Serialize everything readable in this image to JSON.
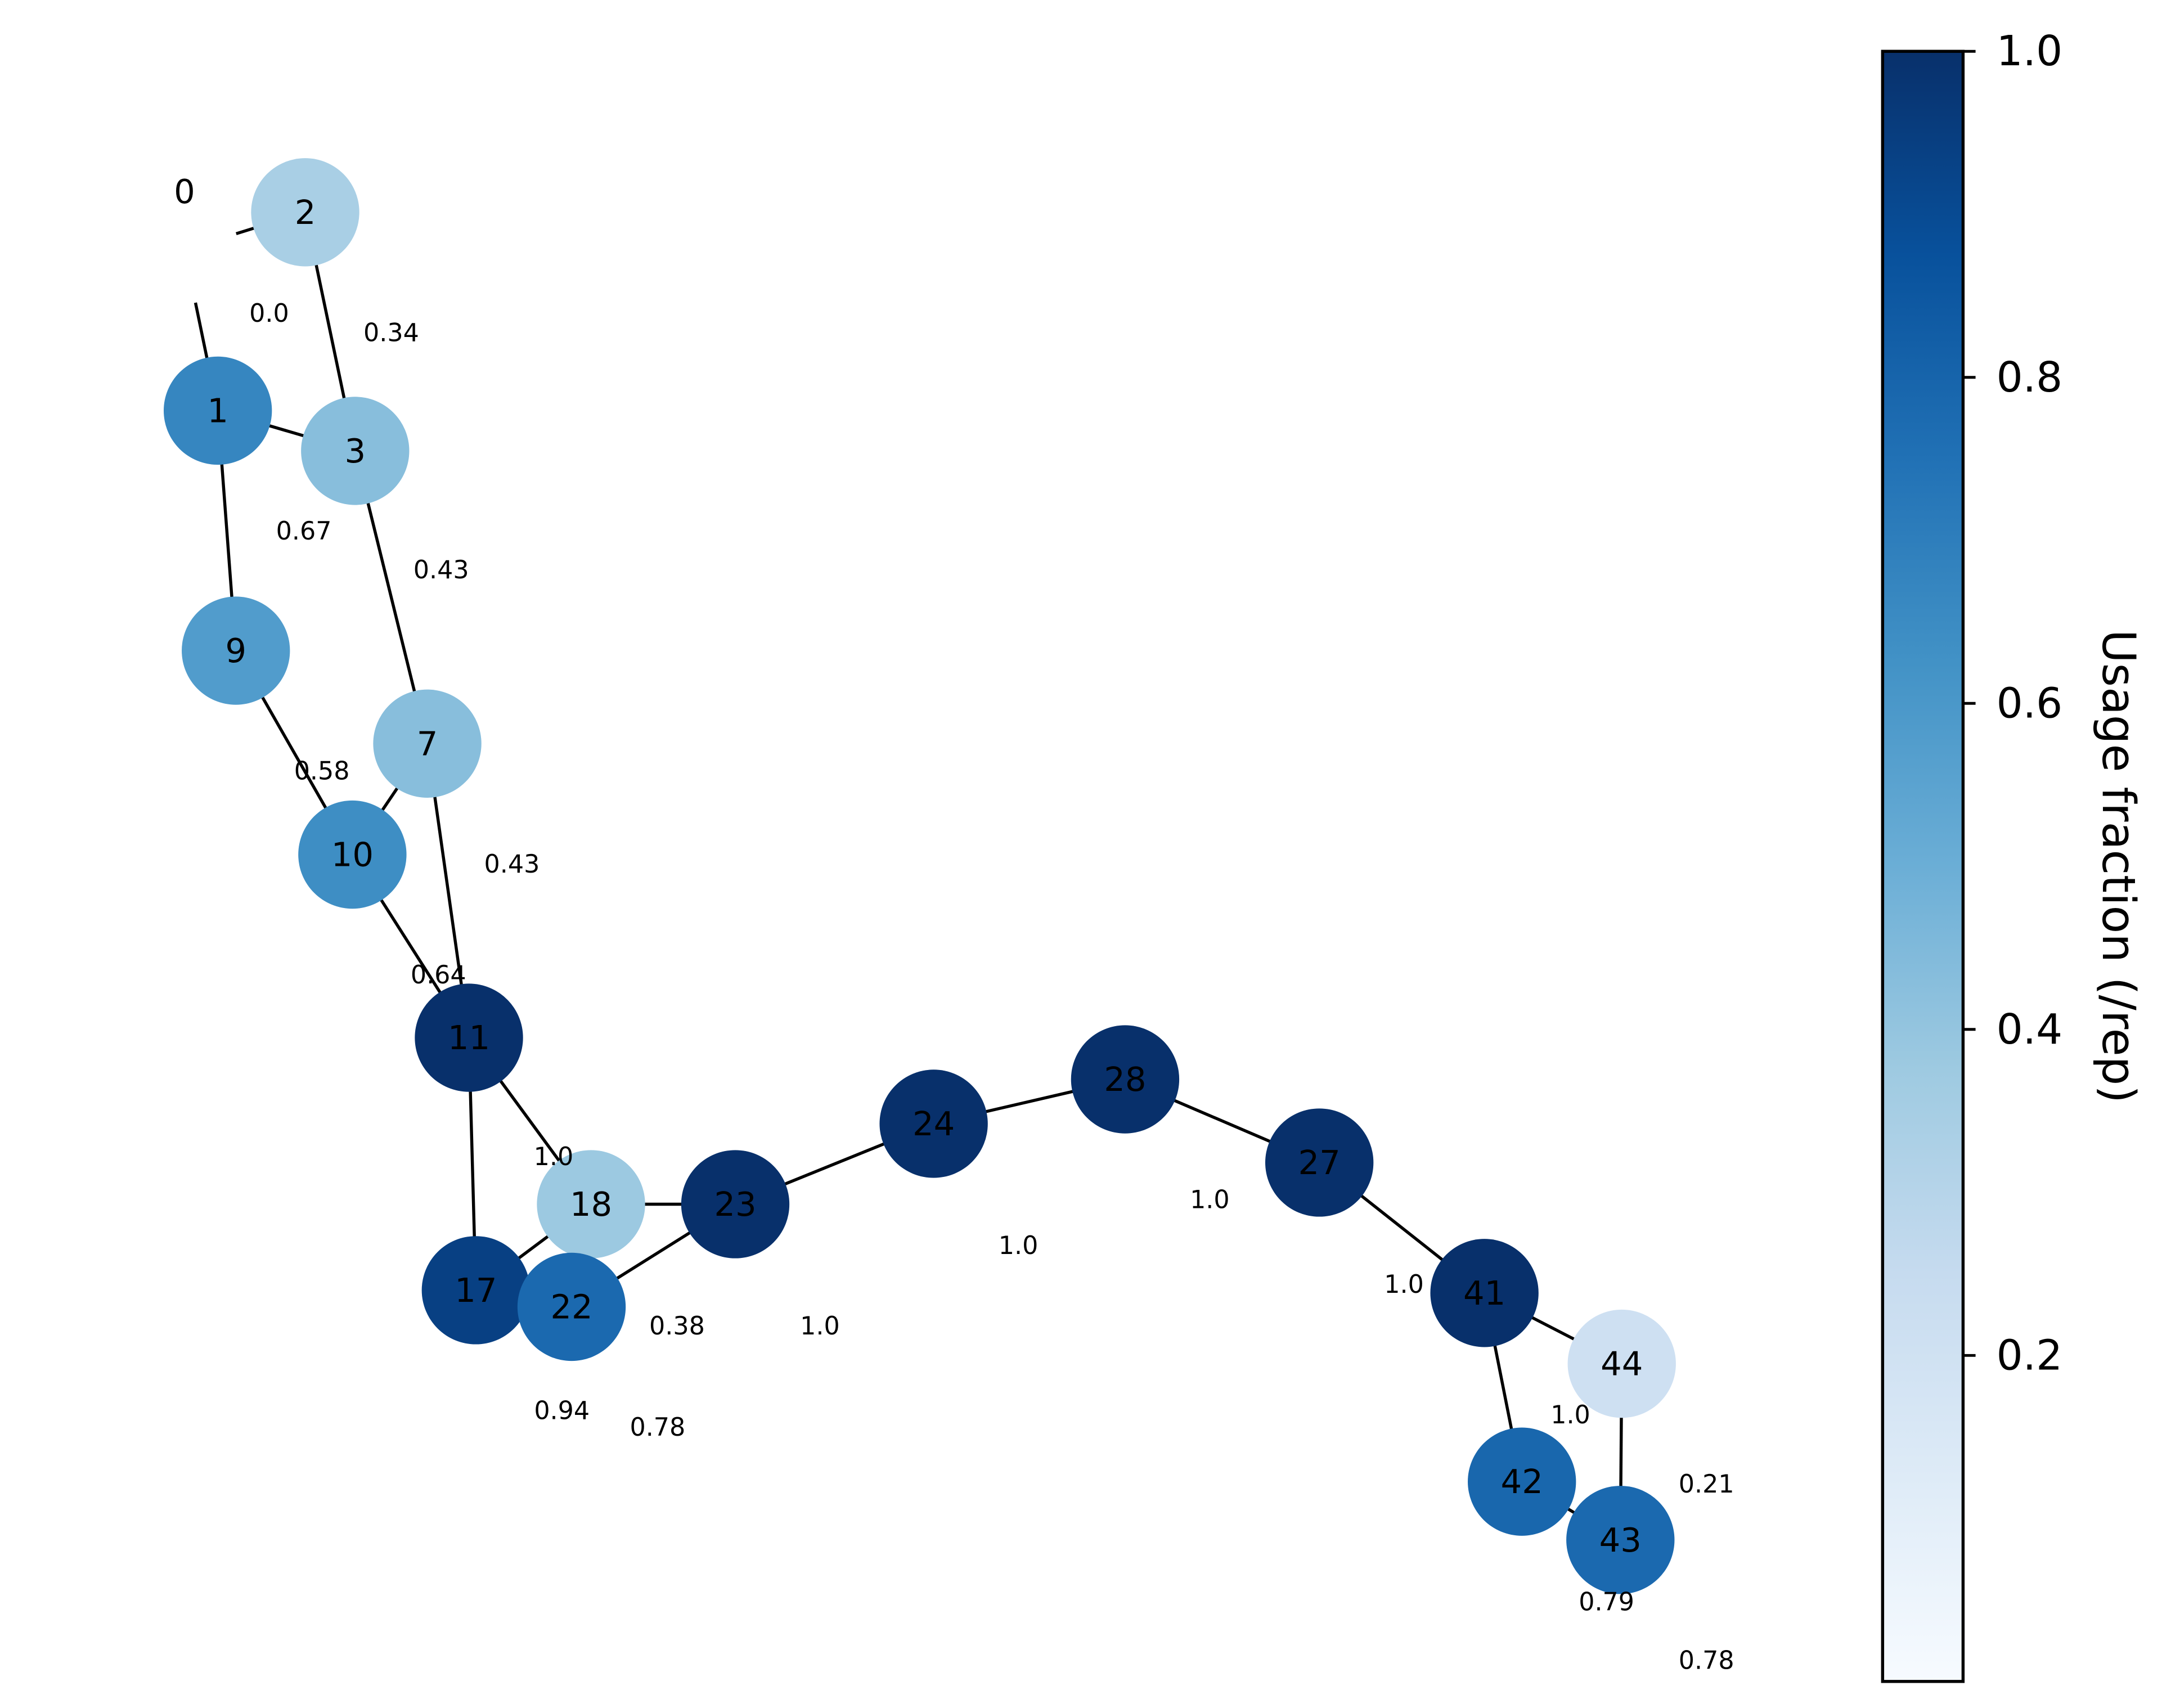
{
  "colorbar": {
    "label": "Usage fraction (/rep)",
    "range": [
      0.0,
      1.0
    ],
    "ticks": [
      "0.2",
      "0.4",
      "0.6",
      "0.8",
      "1.0"
    ],
    "colormap": [
      "#f7fbff",
      "#deebf7",
      "#c6dbef",
      "#9ecae1",
      "#6baed6",
      "#4292c6",
      "#2171b5",
      "#08519c",
      "#08306b"
    ]
  },
  "nodes": [
    {
      "id": "0",
      "label": "0",
      "value": 0.0
    },
    {
      "id": "1",
      "label": "1",
      "value": 0.67
    },
    {
      "id": "2",
      "label": "2",
      "value": 0.34
    },
    {
      "id": "3",
      "label": "3",
      "value": 0.43
    },
    {
      "id": "7",
      "label": "7",
      "value": 0.43
    },
    {
      "id": "9",
      "label": "9",
      "value": 0.58
    },
    {
      "id": "10",
      "label": "10",
      "value": 0.64
    },
    {
      "id": "11",
      "label": "11",
      "value": 1.0
    },
    {
      "id": "17",
      "label": "17",
      "value": 0.94
    },
    {
      "id": "18",
      "label": "18",
      "value": 0.38
    },
    {
      "id": "22",
      "label": "22",
      "value": 0.78
    },
    {
      "id": "23",
      "label": "23",
      "value": 1.0
    },
    {
      "id": "24",
      "label": "24",
      "value": 1.0
    },
    {
      "id": "28",
      "label": "28",
      "value": 1.0
    },
    {
      "id": "27",
      "label": "27",
      "value": 1.0
    },
    {
      "id": "41",
      "label": "41",
      "value": 1.0
    },
    {
      "id": "44",
      "label": "44",
      "value": 0.21
    },
    {
      "id": "42",
      "label": "42",
      "value": 0.79
    },
    {
      "id": "43",
      "label": "43",
      "value": 0.78
    }
  ],
  "edges": [
    {
      "source": "0",
      "target": "2"
    },
    {
      "source": "0",
      "target": "1"
    },
    {
      "source": "2",
      "target": "3"
    },
    {
      "source": "1",
      "target": "3"
    },
    {
      "source": "1",
      "target": "9"
    },
    {
      "source": "3",
      "target": "7"
    },
    {
      "source": "9",
      "target": "10"
    },
    {
      "source": "7",
      "target": "10"
    },
    {
      "source": "7",
      "target": "11"
    },
    {
      "source": "10",
      "target": "11"
    },
    {
      "source": "11",
      "target": "18"
    },
    {
      "source": "11",
      "target": "17"
    },
    {
      "source": "17",
      "target": "18"
    },
    {
      "source": "18",
      "target": "23"
    },
    {
      "source": "22",
      "target": "23"
    },
    {
      "source": "23",
      "target": "24"
    },
    {
      "source": "24",
      "target": "28"
    },
    {
      "source": "28",
      "target": "27"
    },
    {
      "source": "27",
      "target": "41"
    },
    {
      "source": "41",
      "target": "44"
    },
    {
      "source": "41",
      "target": "42"
    },
    {
      "source": "44",
      "target": "43"
    },
    {
      "source": "42",
      "target": "43"
    }
  ],
  "value_labels": [
    {
      "node": "0",
      "text": "0.0"
    },
    {
      "node": "2",
      "text": "0.34"
    },
    {
      "node": "1",
      "text": "0.67"
    },
    {
      "node": "3",
      "text": "0.43"
    },
    {
      "node": "9",
      "text": "0.58"
    },
    {
      "node": "7",
      "text": "0.43"
    },
    {
      "node": "10",
      "text": "0.64"
    },
    {
      "node": "11",
      "text": "1.0"
    },
    {
      "node": "18",
      "text": "0.38"
    },
    {
      "node": "17",
      "text": "0.94"
    },
    {
      "node": "22",
      "text": "0.78"
    },
    {
      "node": "23",
      "text": "1.0"
    },
    {
      "node": "24",
      "text": "1.0"
    },
    {
      "node": "28",
      "text": "1.0"
    },
    {
      "node": "27",
      "text": "1.0"
    },
    {
      "node": "41",
      "text": "1.0"
    },
    {
      "node": "44",
      "text": "0.21"
    },
    {
      "node": "42",
      "text": "0.79"
    },
    {
      "node": "43",
      "text": "0.78"
    }
  ]
}
